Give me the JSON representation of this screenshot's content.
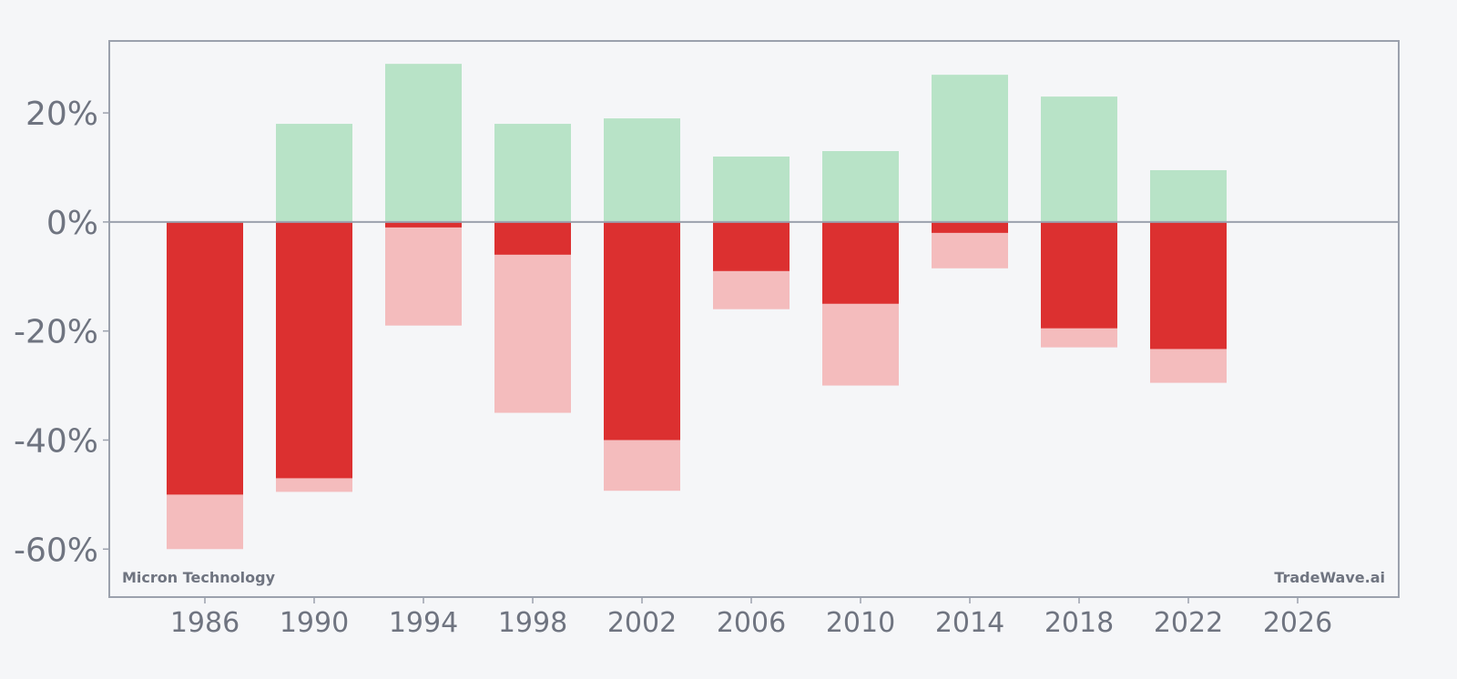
{
  "chart_data": {
    "type": "bar",
    "x": [
      1986,
      1990,
      1994,
      1998,
      2002,
      2006,
      2010,
      2014,
      2018,
      2022
    ],
    "series": [
      {
        "values": [
          0,
          18,
          29,
          18,
          19,
          12,
          13,
          27,
          23,
          9.5
        ]
      },
      {
        "values": [
          -50,
          -47,
          -1,
          -6,
          -40,
          -9,
          -15,
          -2,
          -19.5,
          -23.3
        ]
      },
      {
        "values": [
          -60,
          -49.5,
          -19,
          -35,
          -49.3,
          -16,
          -30,
          -8.5,
          -23,
          -29.5
        ]
      }
    ],
    "xticks": [
      1986,
      1990,
      1994,
      1998,
      2002,
      2006,
      2010,
      2014,
      2018,
      2022,
      2026
    ],
    "yticks": [
      20,
      0,
      -20,
      -40,
      -60
    ],
    "ytick_labels": [
      "20%",
      "0%",
      "-20%",
      "-40%",
      "-60%"
    ],
    "xlim": [
      1982.5,
      2029.7
    ],
    "ylim": [
      -68.8,
      33.2
    ],
    "grid": false,
    "annotations": {
      "bottom_left": "Micron Technology",
      "bottom_right": "TradeWave.ai"
    },
    "colors": {
      "background": "#f5f6f8",
      "axis": "#9ba1ad",
      "tick_text": "#6f7480",
      "annotation_text": "#6f7480",
      "gain": "#b8e3c7",
      "close_loss": "#dc3030",
      "max_drawdown": "#f4bcbd"
    }
  }
}
